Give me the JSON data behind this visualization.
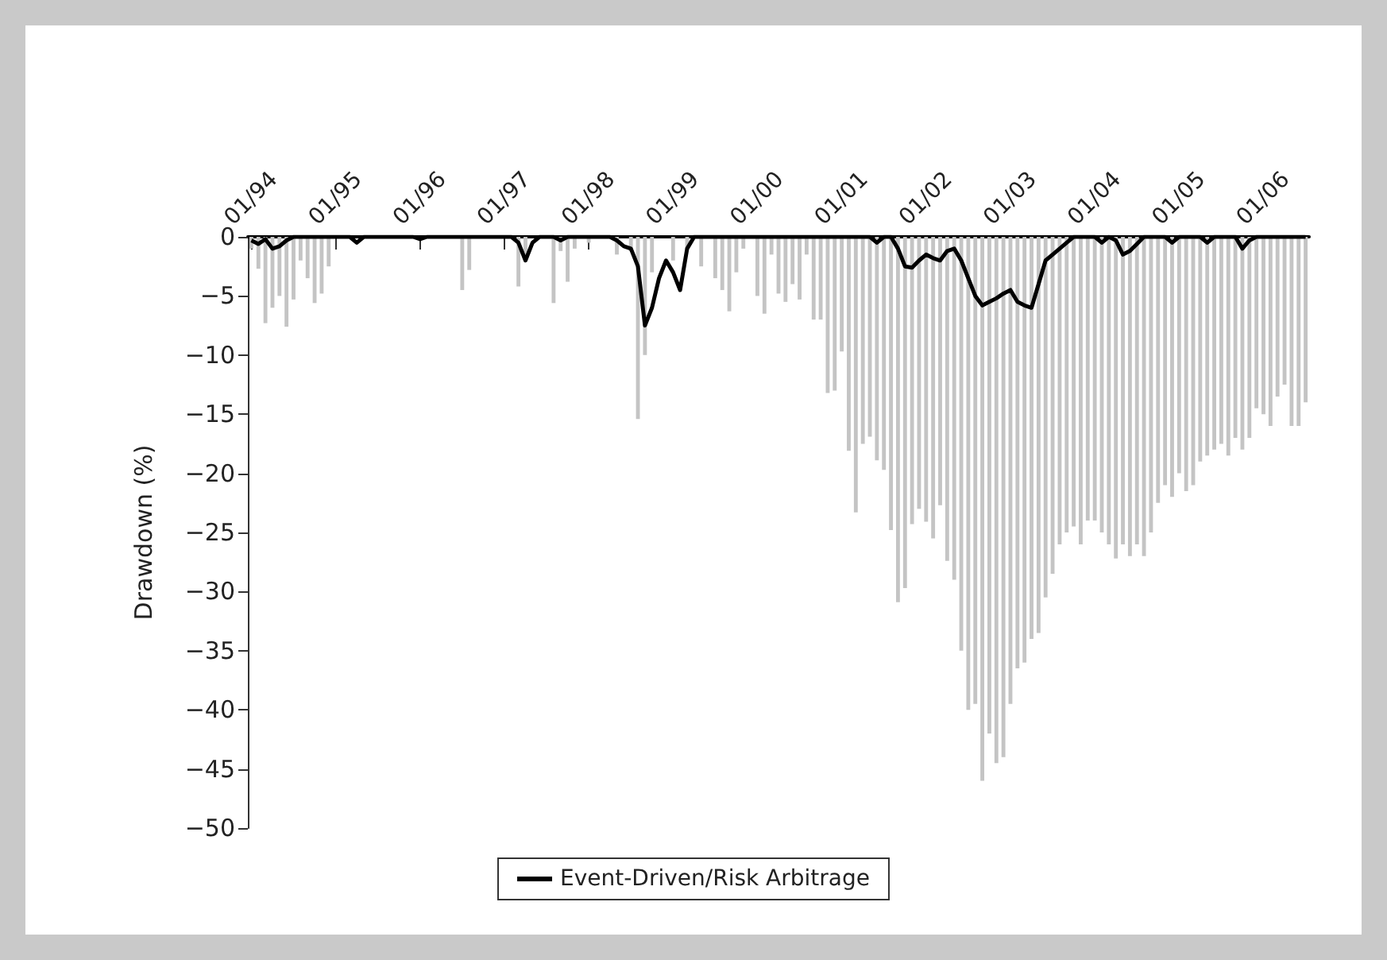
{
  "chart_data": {
    "type": "bar",
    "ylabel": "Drawdown (%)",
    "categories": [
      "01/94",
      null,
      null,
      null,
      null,
      null,
      null,
      null,
      null,
      null,
      null,
      null,
      "01/95",
      null,
      null,
      null,
      null,
      null,
      null,
      null,
      null,
      null,
      null,
      null,
      "01/96",
      null,
      null,
      null,
      null,
      null,
      null,
      null,
      null,
      null,
      null,
      null,
      "01/97",
      null,
      null,
      null,
      null,
      null,
      null,
      null,
      null,
      null,
      null,
      null,
      "01/98",
      null,
      null,
      null,
      null,
      null,
      null,
      null,
      null,
      null,
      null,
      null,
      "01/99",
      null,
      null,
      null,
      null,
      null,
      null,
      null,
      null,
      null,
      null,
      null,
      "01/00",
      null,
      null,
      null,
      null,
      null,
      null,
      null,
      null,
      null,
      null,
      null,
      "01/01",
      null,
      null,
      null,
      null,
      null,
      null,
      null,
      null,
      null,
      null,
      null,
      "01/02",
      null,
      null,
      null,
      null,
      null,
      null,
      null,
      null,
      null,
      null,
      null,
      "01/03",
      null,
      null,
      null,
      null,
      null,
      null,
      null,
      null,
      null,
      null,
      null,
      "01/04",
      null,
      null,
      null,
      null,
      null,
      null,
      null,
      null,
      null,
      null,
      null,
      "01/05",
      null,
      null,
      null,
      null,
      null,
      null,
      null,
      null,
      null,
      null,
      null,
      "01/06",
      null,
      null,
      null,
      null,
      null,
      null
    ],
    "series": [
      {
        "color": "#c4c4c4",
        "values": [
          -1.0,
          -2.7,
          -7.3,
          -6.0,
          -5.0,
          -7.6,
          -5.3,
          -2.0,
          -3.5,
          -5.6,
          -4.8,
          -2.5,
          0,
          0,
          0,
          0,
          0,
          0,
          0,
          0,
          0,
          0,
          0,
          0,
          0,
          0,
          0,
          0,
          0,
          0,
          -4.5,
          -2.8,
          0,
          0,
          0,
          0,
          0,
          0,
          -4.2,
          -1.5,
          0,
          0,
          0,
          -5.6,
          -1.2,
          -3.8,
          -1.0,
          0,
          -0.5,
          0,
          0,
          0,
          -1.5,
          0,
          -1.2,
          -15.4,
          -10.0,
          -3.0,
          0,
          0,
          -2.0,
          0,
          -1.0,
          0,
          -2.5,
          0,
          -3.5,
          -4.5,
          -6.3,
          -3.0,
          -1.0,
          0,
          -5.0,
          -6.5,
          -1.5,
          -4.8,
          -5.5,
          -4.0,
          -5.3,
          -1.5,
          -7.0,
          -7.0,
          -13.2,
          -13.0,
          -9.7,
          -18.1,
          -23.3,
          -17.5,
          -16.9,
          -18.9,
          -19.7,
          -24.8,
          -30.9,
          -29.7,
          -24.3,
          -23.0,
          -24.1,
          -25.5,
          -22.7,
          -27.4,
          -29.0,
          -35.0,
          -40.0,
          -39.5,
          -46.0,
          -42.0,
          -44.5,
          -44.0,
          -39.5,
          -36.5,
          -36.0,
          -34.0,
          -33.5,
          -30.5,
          -28.5,
          -26.0,
          -25.0,
          -24.5,
          -26.0,
          -24.0,
          -24.0,
          -25.0,
          -26.0,
          -27.2,
          -26.0,
          -27.0,
          -26.0,
          -27.0,
          -25.0,
          -22.5,
          -21.0,
          -22.0,
          -20.0,
          -21.5,
          -21.0,
          -19.0,
          -18.5,
          -18.0,
          -17.5,
          -18.5,
          -17.0,
          -18.0,
          -17.0,
          -14.5,
          -15.0,
          -16.0,
          -13.5,
          -12.5,
          -16.0,
          -16.0,
          -14.0
        ]
      },
      {
        "type": "line",
        "name": "Event-Driven/Risk Arbitrage",
        "color": "#000000",
        "values": [
          -0.3,
          -0.6,
          -0.2,
          -1.0,
          -0.8,
          -0.3,
          0,
          0,
          0,
          0,
          0,
          0,
          0,
          0,
          0,
          -0.5,
          0,
          0,
          0,
          0,
          0,
          0,
          0,
          0,
          -0.2,
          0,
          0,
          0,
          0,
          0,
          0,
          0,
          0,
          0,
          0,
          0,
          0,
          0,
          -0.5,
          -2.0,
          -0.5,
          0,
          0,
          0,
          -0.3,
          0,
          0,
          0,
          0,
          0,
          0,
          0,
          -0.3,
          -0.8,
          -1.0,
          -2.5,
          -7.5,
          -6.0,
          -3.5,
          -2.0,
          -3.0,
          -4.5,
          -1.0,
          0,
          0,
          0,
          0,
          0,
          0,
          0,
          0,
          0,
          0,
          0,
          0,
          0,
          0,
          0,
          0,
          0,
          0,
          0,
          0,
          0,
          0,
          0,
          0,
          0,
          0,
          -0.5,
          0,
          0,
          -1.0,
          -2.5,
          -2.6,
          -2.0,
          -1.5,
          -1.8,
          -2.0,
          -1.2,
          -1.0,
          -2.0,
          -3.5,
          -5.0,
          -5.8,
          -5.5,
          -5.2,
          -4.8,
          -4.5,
          -5.5,
          -5.8,
          -6.0,
          -4.0,
          -2.0,
          -1.5,
          -1.0,
          -0.5,
          0,
          0,
          0,
          0,
          -0.5,
          0,
          -0.3,
          -1.5,
          -1.2,
          -0.6,
          0,
          0,
          0,
          0,
          -0.5,
          0,
          0,
          0,
          0,
          -0.5,
          0,
          0,
          0,
          0,
          -1.0,
          -0.3,
          0,
          0,
          0,
          0,
          0,
          0,
          0,
          0
        ]
      }
    ],
    "ylim": [
      -50,
      0
    ],
    "yticks": [
      -50,
      -45,
      -40,
      -35,
      -30,
      -25,
      -20,
      -15,
      -10,
      -5,
      0
    ],
    "grid": false,
    "legend": "bottom",
    "marker": "none",
    "line_style": "solid"
  }
}
